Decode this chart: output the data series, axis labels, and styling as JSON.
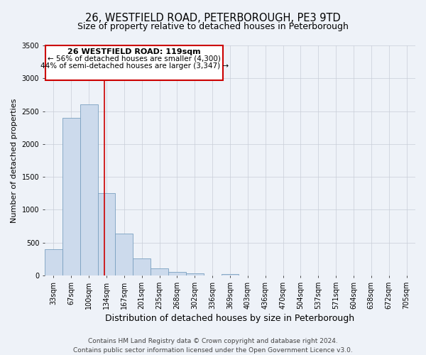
{
  "title": "26, WESTFIELD ROAD, PETERBOROUGH, PE3 9TD",
  "subtitle": "Size of property relative to detached houses in Peterborough",
  "xlabel": "Distribution of detached houses by size in Peterborough",
  "ylabel": "Number of detached properties",
  "bar_color": "#ccdaec",
  "bar_edge_color": "#7aa0c0",
  "background_color": "#eef2f8",
  "grid_color": "#c8cdd8",
  "categories": [
    "33sqm",
    "67sqm",
    "100sqm",
    "134sqm",
    "167sqm",
    "201sqm",
    "235sqm",
    "268sqm",
    "302sqm",
    "336sqm",
    "369sqm",
    "403sqm",
    "436sqm",
    "470sqm",
    "504sqm",
    "537sqm",
    "571sqm",
    "604sqm",
    "638sqm",
    "672sqm",
    "705sqm"
  ],
  "values": [
    400,
    2400,
    2600,
    1250,
    640,
    260,
    105,
    55,
    30,
    0,
    25,
    0,
    0,
    0,
    0,
    0,
    0,
    0,
    0,
    0,
    0
  ],
  "ylim": [
    0,
    3500
  ],
  "yticks": [
    0,
    500,
    1000,
    1500,
    2000,
    2500,
    3000,
    3500
  ],
  "vline_x": 2.87,
  "vline_color": "#cc0000",
  "annotation_title": "26 WESTFIELD ROAD: 119sqm",
  "annotation_line1": "← 56% of detached houses are smaller (4,300)",
  "annotation_line2": "44% of semi-detached houses are larger (3,347) →",
  "annotation_box_color": "#ffffff",
  "annotation_box_edgecolor": "#cc0000",
  "footer_line1": "Contains HM Land Registry data © Crown copyright and database right 2024.",
  "footer_line2": "Contains public sector information licensed under the Open Government Licence v3.0.",
  "title_fontsize": 10.5,
  "subtitle_fontsize": 9,
  "xlabel_fontsize": 9,
  "ylabel_fontsize": 8,
  "tick_fontsize": 7,
  "footer_fontsize": 6.5,
  "ann_title_fontsize": 8,
  "ann_text_fontsize": 7.5
}
